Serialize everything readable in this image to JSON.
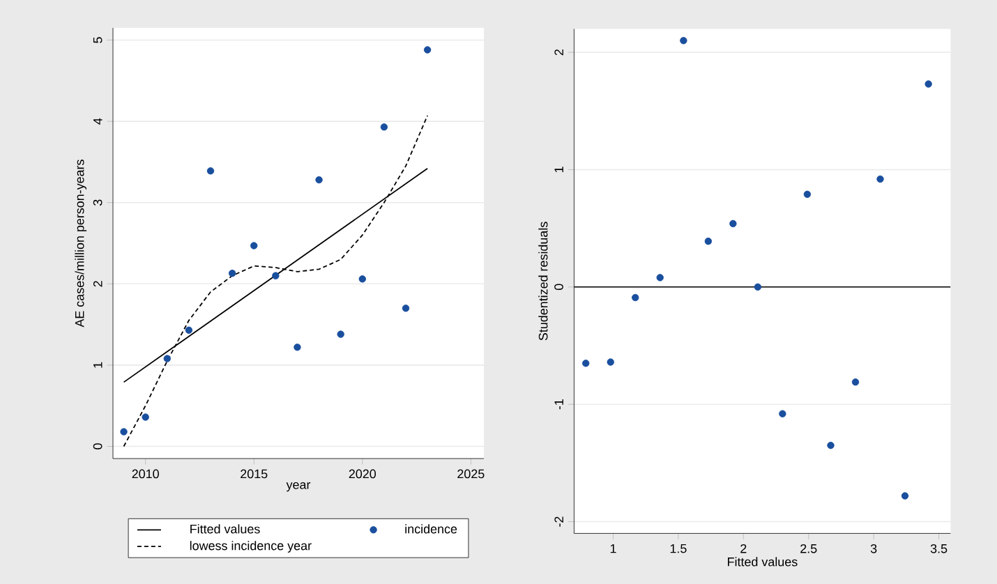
{
  "chart_data": [
    {
      "type": "scatter",
      "xlabel": "year",
      "ylabel": "AE cases/million person-years",
      "xlim": [
        2008.5,
        2025.6
      ],
      "ylim": [
        -0.15,
        5.15
      ],
      "xticks": [
        2010,
        2015,
        2020,
        2025
      ],
      "yticks": [
        0,
        1,
        2,
        3,
        4,
        5
      ],
      "grid": "y",
      "legend": "bottom",
      "series": [
        {
          "name": "Fitted values",
          "type": "line",
          "color": "#000000",
          "line_style": "solid",
          "marker": "none",
          "x": [
            2009,
            2023
          ],
          "values": [
            0.79,
            3.42
          ]
        },
        {
          "name": "incidence",
          "type": "scatter",
          "color": "#1a4f9e",
          "marker": "circle",
          "x": [
            2009,
            2010,
            2011,
            2012,
            2013,
            2014,
            2015,
            2016,
            2017,
            2018,
            2019,
            2020,
            2021,
            2022,
            2023
          ],
          "values": [
            0.18,
            0.36,
            1.08,
            1.43,
            3.39,
            2.13,
            2.47,
            2.1,
            1.22,
            3.28,
            1.38,
            2.06,
            3.93,
            1.7,
            4.88
          ]
        },
        {
          "name": "lowess incidence year",
          "type": "line",
          "color": "#000000",
          "line_style": "dashed",
          "marker": "none",
          "x": [
            2009,
            2010,
            2011,
            2012,
            2013,
            2014,
            2015,
            2016,
            2017,
            2018,
            2019,
            2020,
            2021,
            2022,
            2023
          ],
          "values": [
            0.0,
            0.5,
            1.05,
            1.55,
            1.9,
            2.1,
            2.22,
            2.2,
            2.15,
            2.18,
            2.3,
            2.6,
            3.0,
            3.45,
            4.07
          ]
        }
      ]
    },
    {
      "type": "scatter",
      "xlabel": "Fitted values",
      "ylabel": "Studentized residuals",
      "xlim": [
        0.7,
        3.59
      ],
      "ylim": [
        -2.1,
        2.2
      ],
      "xticks": [
        1,
        1.5,
        2,
        2.5,
        3,
        3.5
      ],
      "yticks": [
        -2,
        -1,
        0,
        1,
        2
      ],
      "grid": "y",
      "legend": false,
      "ref_lines": [
        {
          "axis": "y",
          "value": 0,
          "color": "#000000"
        }
      ],
      "series": [
        {
          "type": "scatter",
          "color": "#1a4f9e",
          "marker": "circle",
          "x": [
            0.79,
            0.98,
            1.17,
            1.36,
            1.54,
            1.73,
            1.92,
            2.11,
            2.3,
            2.49,
            2.67,
            2.86,
            3.05,
            3.24,
            3.42
          ],
          "values": [
            -0.65,
            -0.64,
            -0.09,
            0.08,
            2.1,
            0.39,
            0.54,
            0.0,
            -1.08,
            0.79,
            -1.35,
            -0.81,
            0.92,
            -1.78,
            1.73
          ]
        }
      ]
    }
  ]
}
